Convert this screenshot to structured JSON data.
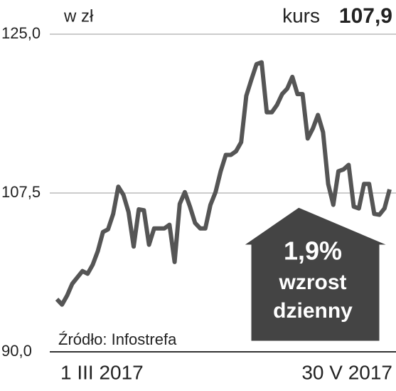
{
  "chart_data": {
    "type": "line",
    "unit_label": "w zł",
    "current_label": "kurs",
    "current_value": "107,9",
    "source": "Źródło: Infostrefa",
    "annotation": {
      "change": "1,9%",
      "line1": "wzrost",
      "line2": "dzienny"
    },
    "categories": [
      "1 III 2017",
      null,
      null,
      null,
      null,
      null,
      null,
      null,
      null,
      null,
      null,
      null,
      null,
      null,
      null,
      null,
      null,
      null,
      null,
      null,
      null,
      null,
      null,
      null,
      null,
      null,
      null,
      null,
      null,
      null,
      null,
      null,
      null,
      null,
      null,
      null,
      null,
      null,
      null,
      null,
      null,
      null,
      null,
      null,
      null,
      null,
      null,
      null,
      null,
      null,
      null,
      null,
      null,
      null,
      null,
      null,
      null,
      null,
      null,
      null,
      null,
      null,
      null,
      null,
      null,
      "30 V 2017"
    ],
    "series": [
      {
        "color": "#555555",
        "values": [
          95.8,
          95.2,
          96.2,
          97.5,
          98.2,
          98.9,
          98.6,
          99.6,
          101.1,
          103.2,
          103.5,
          105.2,
          108.2,
          107.3,
          105.4,
          101.6,
          105.7,
          105.6,
          101.8,
          103.6,
          103.6,
          103.6,
          104.0,
          99.9,
          106.3,
          107.6,
          106.0,
          104.2,
          103.6,
          103.6,
          106.2,
          107.6,
          109.9,
          111.7,
          111.7,
          112.1,
          113.1,
          118.2,
          120.0,
          121.7,
          121.9,
          116.4,
          116.4,
          117.2,
          118.4,
          119.0,
          120.3,
          118.4,
          118.4,
          113.5,
          114.6,
          116.1,
          114.2,
          108.5,
          106.2,
          109.9,
          110.1,
          110.6,
          106.0,
          105.8,
          108.5,
          108.5,
          105.2,
          105.1,
          105.8,
          107.9
        ]
      }
    ],
    "ylim": [
      90,
      125
    ],
    "yticks": [
      {
        "value": 90,
        "label": "90,0"
      },
      {
        "value": 107.5,
        "label": "107,5"
      },
      {
        "value": 125,
        "label": "125,0"
      }
    ],
    "grid": true
  }
}
